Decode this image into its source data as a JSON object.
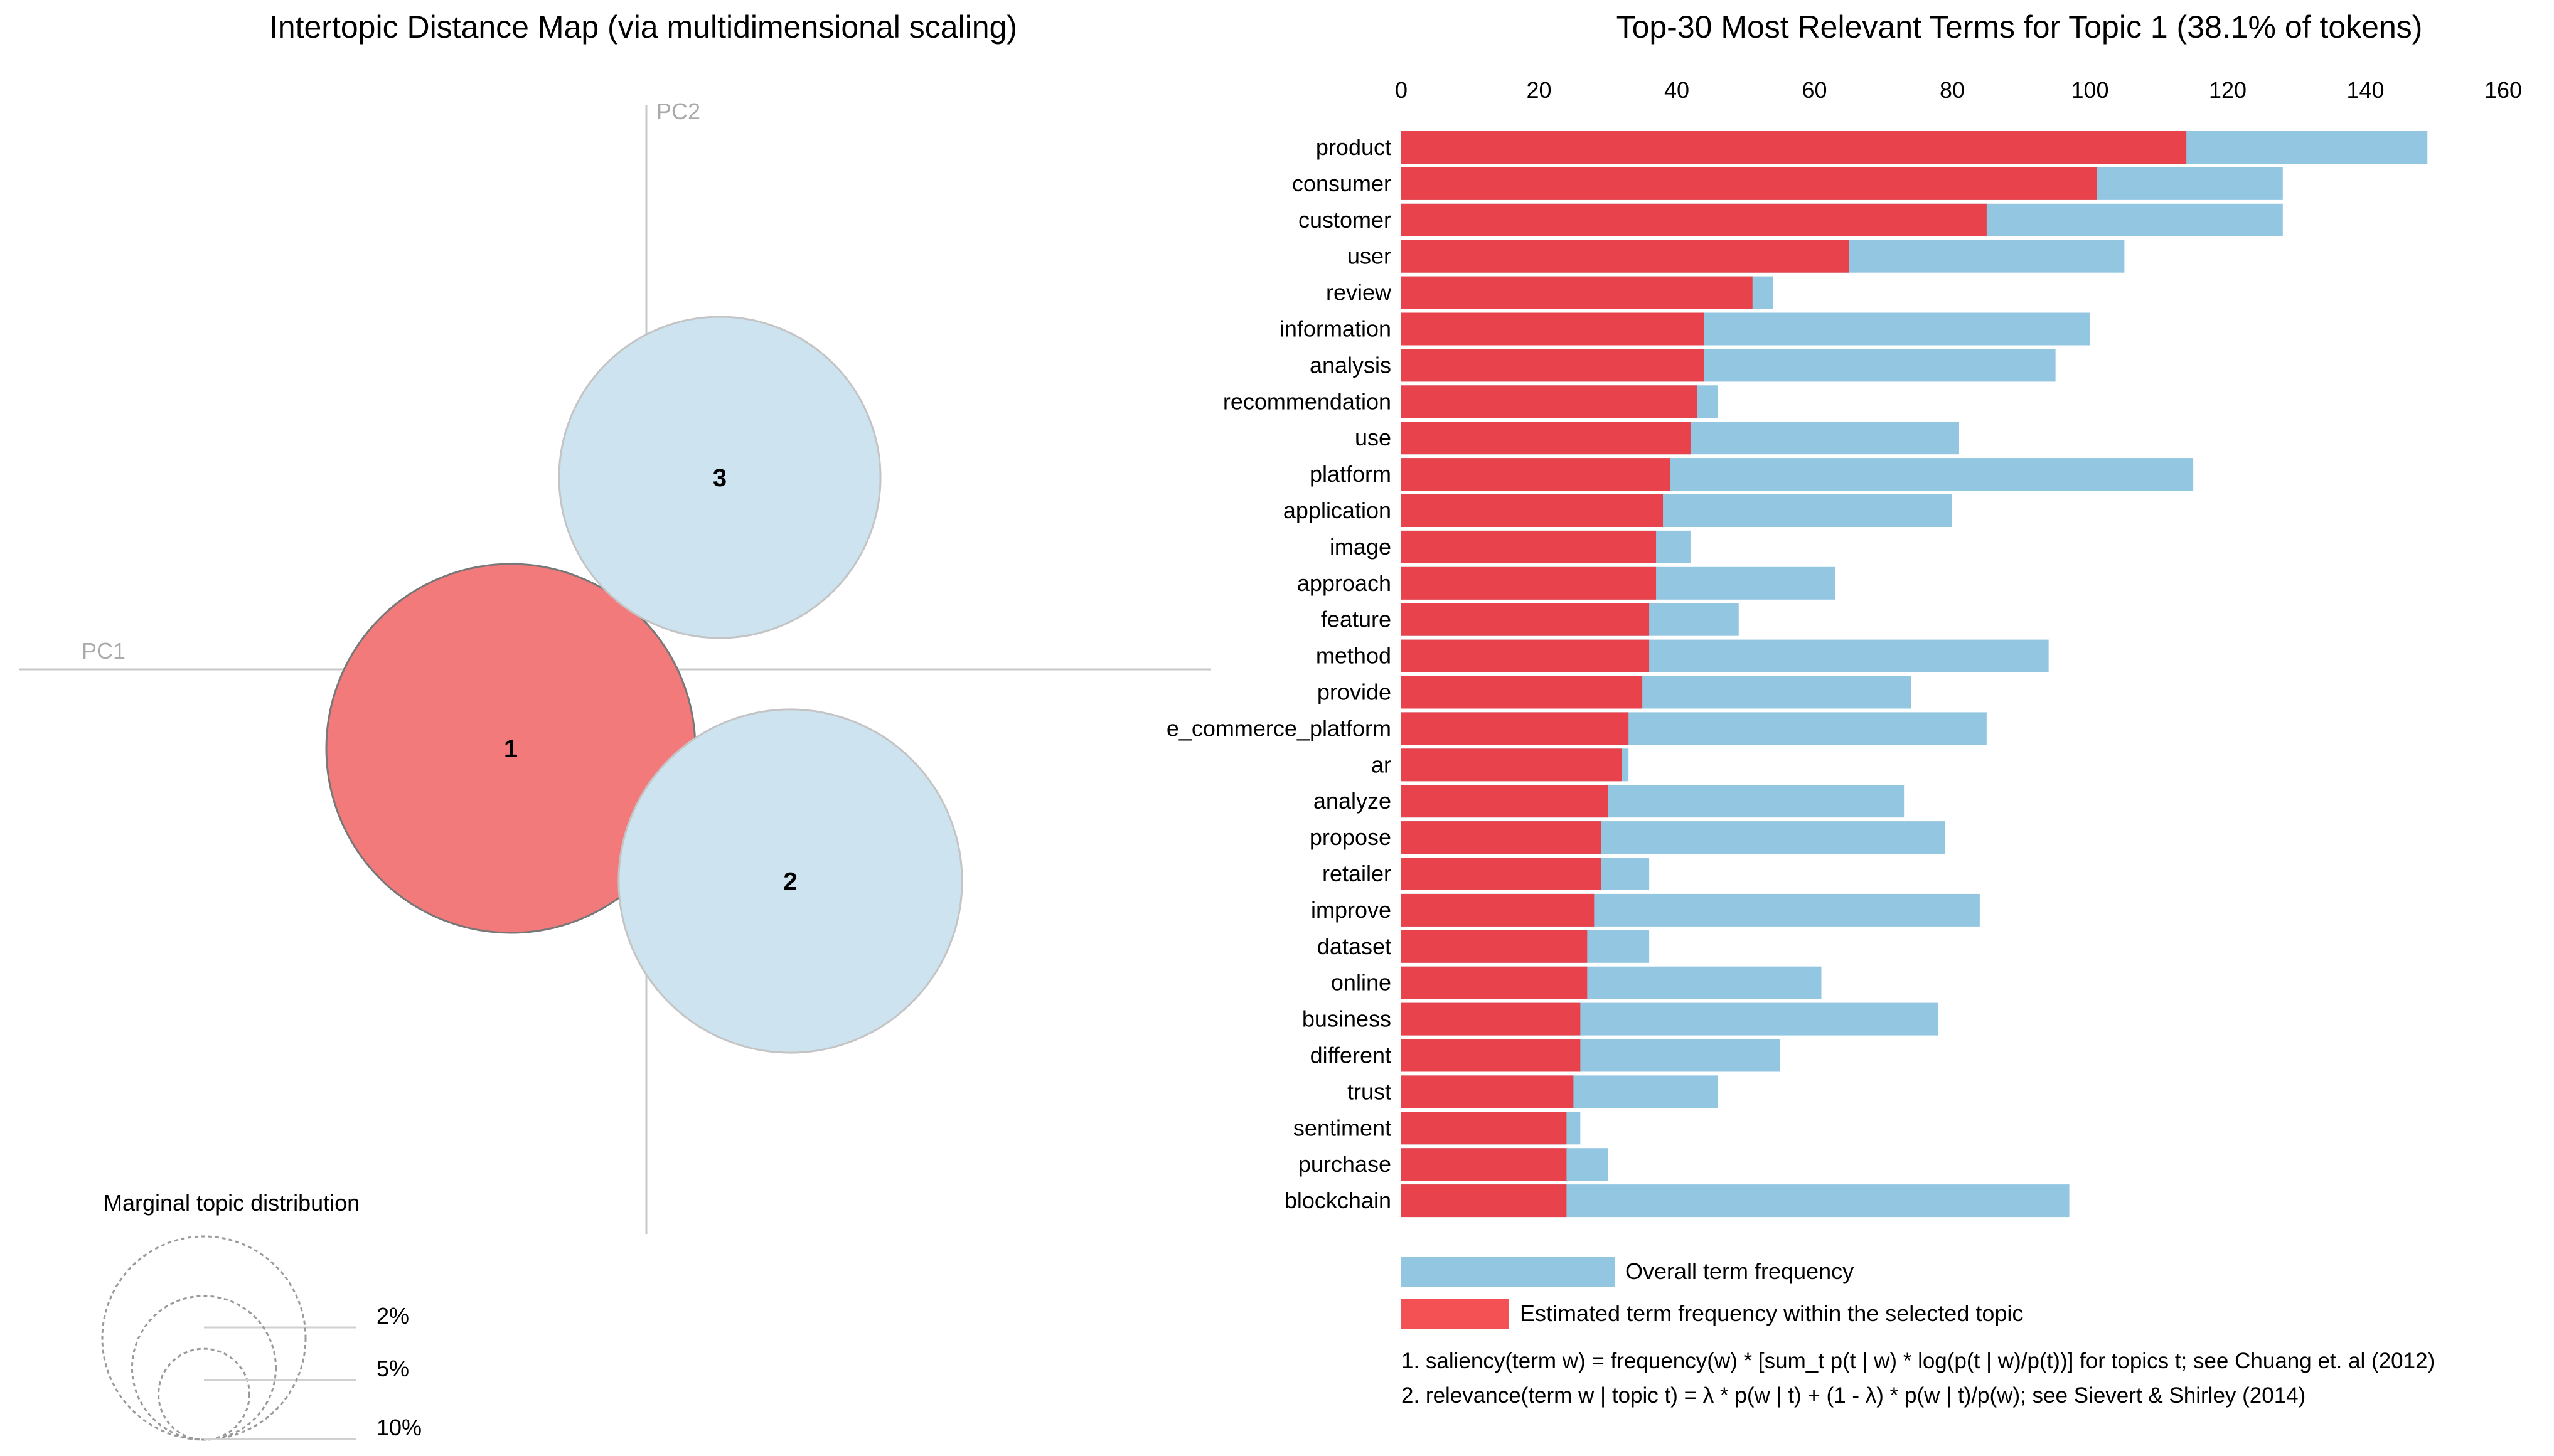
{
  "colors": {
    "selected_topic": "#f27a7b",
    "topic_fill": "#cde3ef",
    "overall_bar": "#93c7e1",
    "topic_bar": "#e8424c",
    "topic_bar_legend": "#f45155"
  },
  "chart_data": [
    {
      "type": "scatter",
      "title": "Intertopic Distance Map (via multidimensional scaling)",
      "xlabel": "PC1",
      "ylabel": "PC2",
      "selected_topic": "1",
      "topics": [
        {
          "label": "1",
          "pc1": -0.24,
          "pc2": -0.14,
          "token_pct": 38.1,
          "selected": true
        },
        {
          "label": "2",
          "pc1": 0.255,
          "pc2": -0.375,
          "token_pct": 33.0,
          "selected": false
        },
        {
          "label": "3",
          "pc1": 0.13,
          "pc2": 0.34,
          "token_pct": 28.9,
          "selected": false
        }
      ],
      "marginal_legend": {
        "title": "Marginal topic distribution",
        "items": [
          {
            "label": "2%",
            "value": 2
          },
          {
            "label": "5%",
            "value": 5
          },
          {
            "label": "10%",
            "value": 10
          }
        ]
      }
    },
    {
      "type": "bar",
      "orientation": "horizontal",
      "title": "Top-30 Most Relevant Terms for Topic 1 (38.1% of tokens)",
      "xlim": [
        0,
        160
      ],
      "xticks": [
        "0",
        "20",
        "40",
        "60",
        "80",
        "100",
        "120",
        "140",
        "160"
      ],
      "categories": [
        "product",
        "consumer",
        "customer",
        "user",
        "review",
        "information",
        "analysis",
        "recommendation",
        "use",
        "platform",
        "application",
        "image",
        "approach",
        "feature",
        "method",
        "provide",
        "e_commerce_platform",
        "ar",
        "analyze",
        "propose",
        "retailer",
        "improve",
        "dataset",
        "online",
        "business",
        "different",
        "trust",
        "sentiment",
        "purchase",
        "blockchain"
      ],
      "series": [
        {
          "name": "Overall term frequency",
          "values": [
            149,
            128,
            128,
            105,
            54,
            100,
            95,
            46,
            81,
            115,
            80,
            42,
            63,
            49,
            94,
            74,
            85,
            33,
            73,
            79,
            36,
            84,
            36,
            61,
            78,
            55,
            46,
            26,
            30,
            97
          ]
        },
        {
          "name": "Estimated term frequency within the selected topic",
          "values": [
            114,
            101,
            85,
            65,
            51,
            44,
            44,
            43,
            42,
            39,
            38,
            37,
            37,
            36,
            36,
            35,
            33,
            32,
            30,
            29,
            29,
            28,
            27,
            27,
            26,
            26,
            25,
            24,
            24,
            24
          ]
        }
      ],
      "legend": [
        {
          "label": "Overall term frequency"
        },
        {
          "label": "Estimated term frequency within the selected topic"
        }
      ],
      "footnotes": [
        "1. saliency(term w) = frequency(w) * [sum_t p(t | w) * log(p(t | w)/p(t))] for topics t; see Chuang et. al (2012)",
        "2. relevance(term w | topic t) = λ * p(w | t) + (1 - λ) * p(w | t)/p(w); see Sievert & Shirley (2014)"
      ]
    }
  ]
}
